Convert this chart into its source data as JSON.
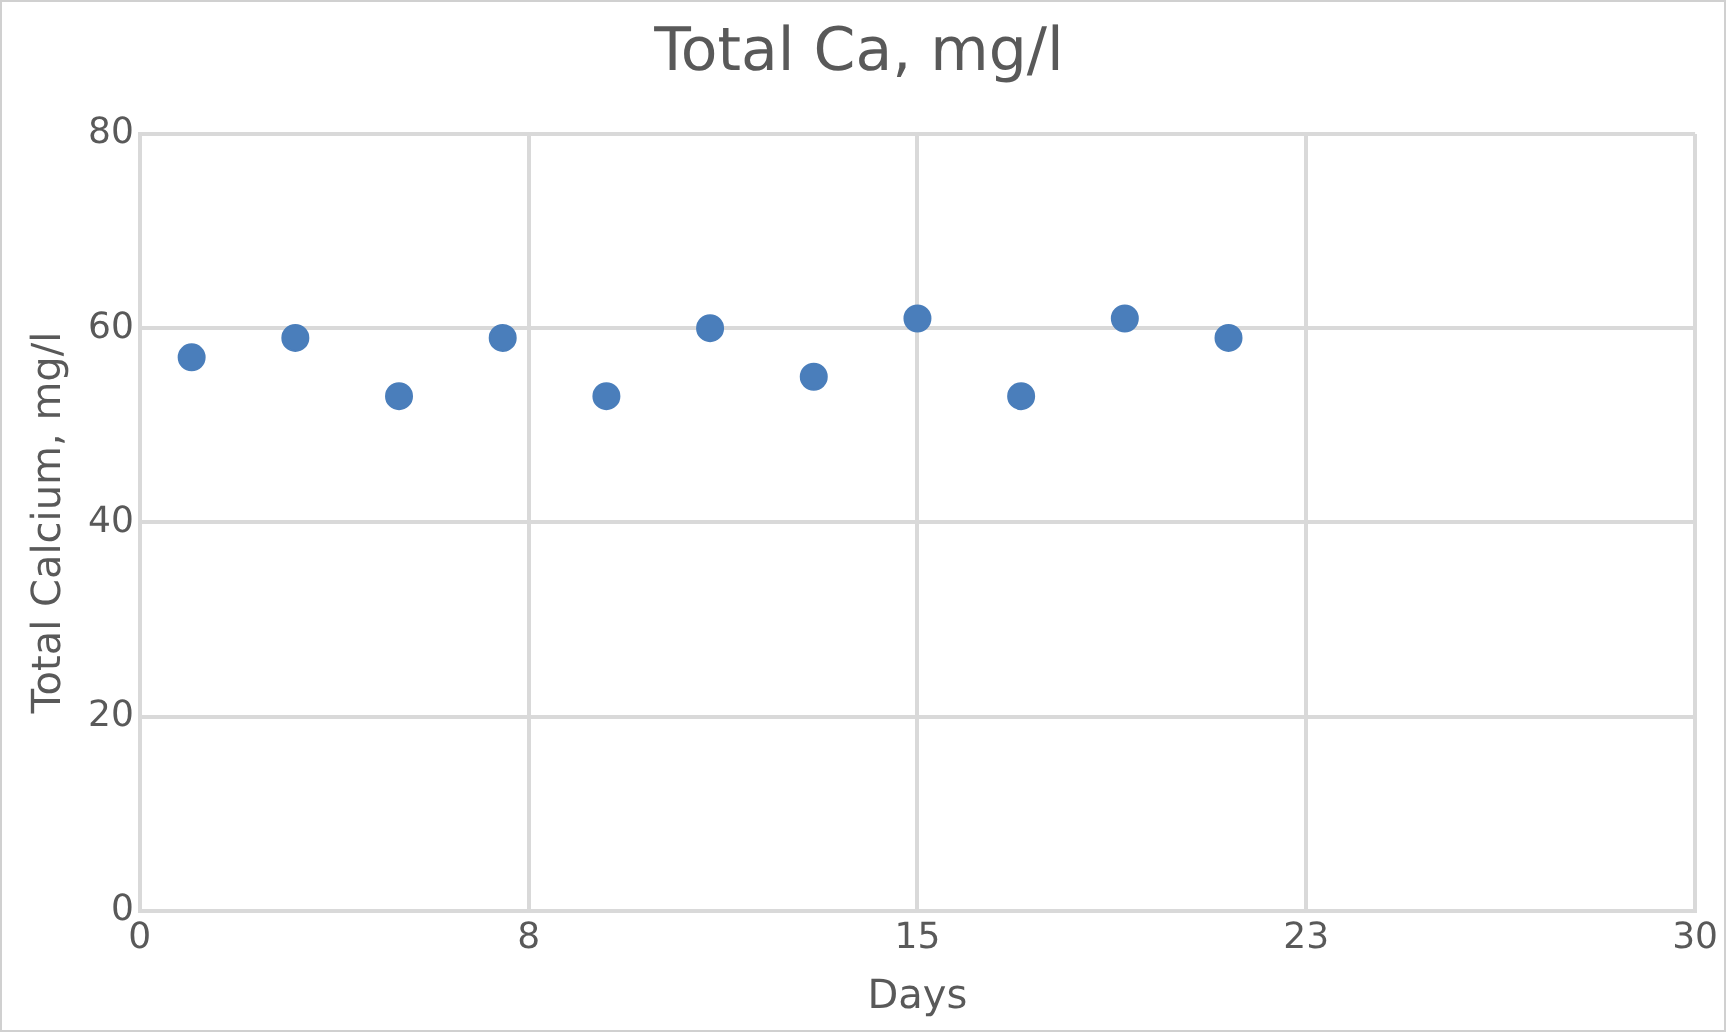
{
  "chart_data": {
    "type": "scatter",
    "title": "Total Ca, mg/l",
    "xlabel": "Days",
    "ylabel": "Total Calcium, mg/l",
    "x": [
      1,
      3,
      5,
      7,
      9,
      11,
      13,
      15,
      17,
      19,
      21
    ],
    "series": [
      {
        "color": "#4a7ebb",
        "values": [
          57,
          59,
          53,
          59,
          53,
          60,
          55,
          61,
          53,
          61,
          59
        ]
      }
    ],
    "xlim": [
      0,
      30
    ],
    "xticks": [
      0,
      {
        "value": 7.5,
        "label": "8"
      },
      15,
      {
        "value": 22.5,
        "label": "23"
      },
      30
    ],
    "ylim": [
      0,
      80
    ],
    "yticks": [
      0,
      20,
      40,
      60,
      80
    ],
    "grid": true,
    "legend": false,
    "marker": "circle"
  }
}
